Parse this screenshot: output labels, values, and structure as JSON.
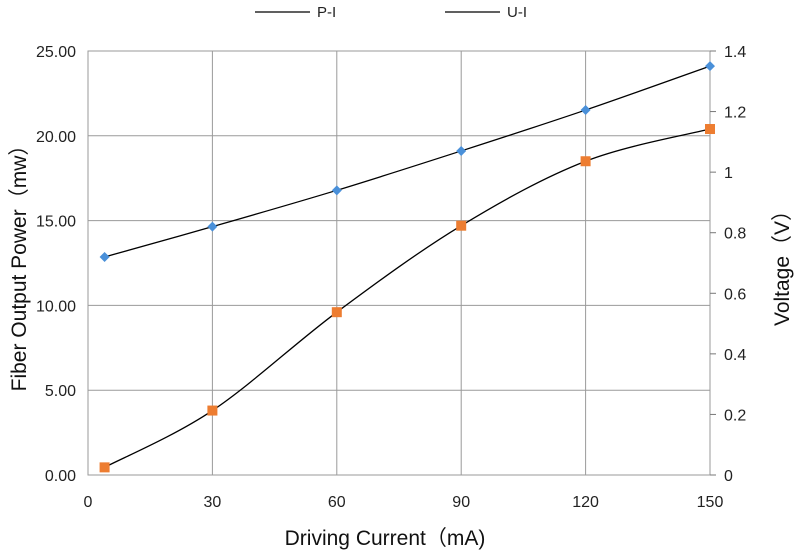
{
  "chart_data": {
    "type": "line",
    "xlabel": "Driving Current（mA)",
    "ylabel": "Fiber Output Power（mw）",
    "y2label": "Voltage（V）",
    "xlim": [
      0,
      150
    ],
    "ylim": [
      0,
      25
    ],
    "y2lim": [
      0,
      1.4
    ],
    "x_ticks": [
      0,
      30,
      60,
      90,
      120,
      150
    ],
    "y_ticks": [
      0,
      5,
      10,
      15,
      20,
      25
    ],
    "y_tick_labels": [
      "0.00",
      "5.00",
      "10.00",
      "15.00",
      "20.00",
      "25.00"
    ],
    "y2_ticks": [
      0,
      0.2,
      0.4,
      0.6,
      0.8,
      1,
      1.2,
      1.4
    ],
    "y2_tick_labels": [
      "0",
      "0.2",
      "0.4",
      "0.6",
      "0.8",
      "1",
      "1.2",
      "1.4"
    ],
    "grid": true,
    "legend_position": "top",
    "series": [
      {
        "name": "P-I",
        "axis": "left",
        "marker": "square",
        "marker_color": "#ED7D31",
        "line_color": "#000000",
        "x": [
          4,
          30,
          60,
          90,
          120,
          150
        ],
        "y": [
          0.45,
          3.8,
          9.6,
          14.7,
          18.5,
          20.4
        ]
      },
      {
        "name": "U-I",
        "axis": "right",
        "marker": "diamond",
        "marker_color": "#4A90D9",
        "line_color": "#000000",
        "x": [
          4,
          30,
          60,
          90,
          120,
          150
        ],
        "y": [
          0.72,
          0.82,
          0.94,
          1.07,
          1.205,
          1.35
        ]
      }
    ]
  }
}
